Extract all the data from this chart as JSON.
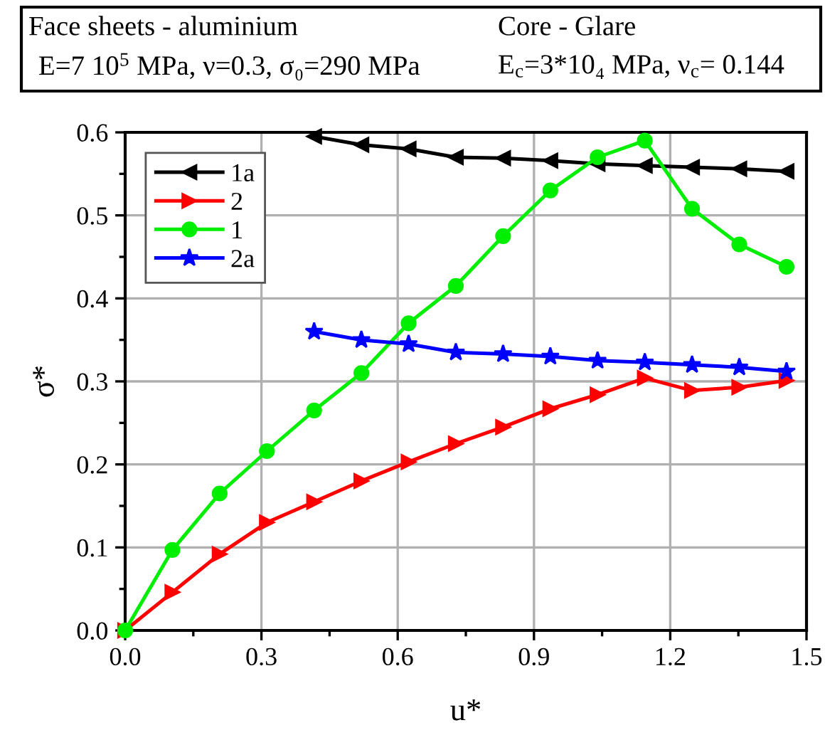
{
  "chart_data": {
    "type": "line",
    "xlabel": "u*",
    "ylabel": "σ*",
    "annotations": [
      "Face sheets - aluminium",
      "Core - Glare",
      "E=7 10$^{5}$ MPa, ν=0.3, σ₀=290 MPa",
      "E$_{c}$=3*10₄ MPa, ν$_{c}$= 0.144"
    ],
    "xlim": [
      0,
      1.5
    ],
    "xticks": [
      {
        "value": 0,
        "label": "0.0"
      },
      0.3,
      0.6,
      0.9,
      1.2,
      1.5
    ],
    "ylim": [
      0,
      0.6
    ],
    "yticks": [
      {
        "value": 0,
        "label": "0.0"
      },
      0.1,
      0.2,
      0.3,
      0.4,
      0.5,
      0.6
    ],
    "grid": true,
    "legend": "top left",
    "line_style": "solid",
    "series": [
      {
        "name": "1a",
        "color": "#000000",
        "marker": "triangle_left",
        "x": [
          0.416,
          0.52,
          0.624,
          0.728,
          0.832,
          0.936,
          1.04,
          1.144,
          1.248,
          1.352,
          1.456
        ],
        "values": [
          0.595,
          0.585,
          0.58,
          0.57,
          0.569,
          0.566,
          0.562,
          0.56,
          0.558,
          0.556,
          0.553
        ]
      },
      {
        "name": "2",
        "color": "#ff0000",
        "marker": "triangle_right",
        "x": [
          0,
          0.104,
          0.208,
          0.312,
          0.416,
          0.52,
          0.624,
          0.728,
          0.832,
          0.936,
          1.04,
          1.144,
          1.248,
          1.352,
          1.456
        ],
        "values": [
          0,
          0.046,
          0.092,
          0.13,
          0.155,
          0.18,
          0.203,
          0.225,
          0.245,
          0.267,
          0.284,
          0.304,
          0.289,
          0.293,
          0.301
        ]
      },
      {
        "name": "1",
        "color": "#00ee00",
        "marker": "circle",
        "x": [
          0,
          0.104,
          0.208,
          0.312,
          0.416,
          0.52,
          0.624,
          0.728,
          0.832,
          0.936,
          1.04,
          1.144,
          1.248,
          1.352,
          1.456
        ],
        "values": [
          0,
          0.097,
          0.165,
          0.216,
          0.265,
          0.31,
          0.37,
          0.415,
          0.475,
          0.53,
          0.57,
          0.59,
          0.508,
          0.465,
          0.438
        ]
      },
      {
        "name": "2a",
        "color": "#0000ff",
        "marker": "star",
        "x": [
          0.416,
          0.52,
          0.624,
          0.728,
          0.832,
          0.936,
          1.04,
          1.144,
          1.248,
          1.352,
          1.456
        ],
        "values": [
          0.36,
          0.35,
          0.345,
          0.335,
          0.333,
          0.33,
          0.325,
          0.323,
          0.32,
          0.317,
          0.312
        ]
      }
    ]
  }
}
